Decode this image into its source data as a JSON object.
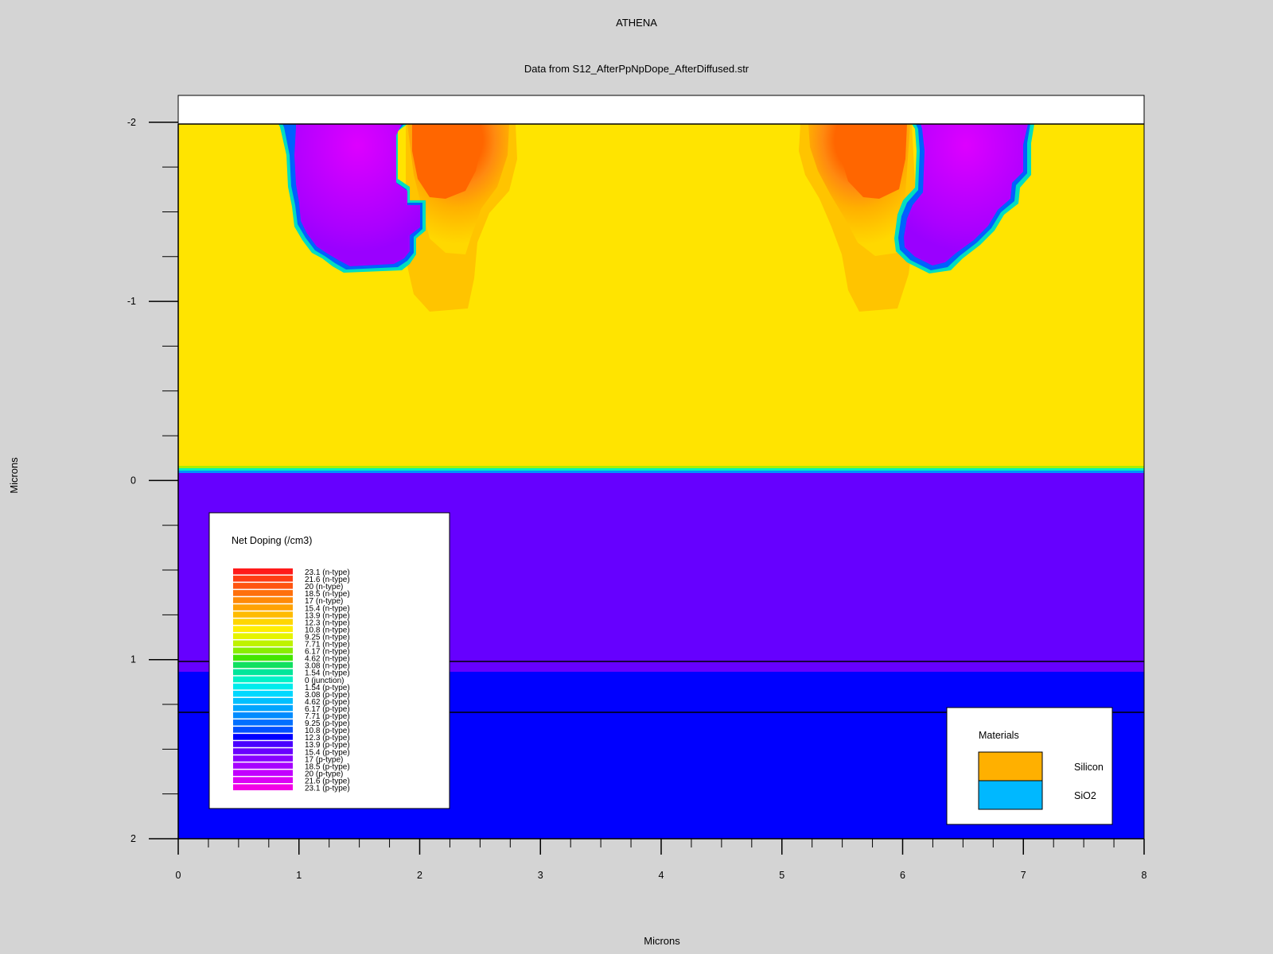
{
  "chart_data": {
    "type": "heatmap",
    "title": "ATHENA",
    "subtitle": "Data from S12_AfterPpNpDope_AfterDiffused.str",
    "xlabel": "Microns",
    "ylabel": "Microns",
    "xlim": [
      0,
      8
    ],
    "ylim": [
      -2.15,
      2
    ],
    "y_axis_inverted": true,
    "x_ticks": [
      0,
      1,
      2,
      3,
      4,
      5,
      6,
      7,
      8
    ],
    "y_ticks": [
      -2,
      -1,
      0,
      1,
      2
    ],
    "x_tick_labels": [
      "0",
      "1",
      "2",
      "3",
      "4",
      "5",
      "6",
      "7",
      "8"
    ],
    "y_tick_labels": [
      "-2",
      "-1",
      "0",
      "1",
      "2"
    ],
    "regions": {
      "top_layer": {
        "y_range": [
          -2.15,
          -2.0
        ],
        "color": "#ffffff"
      },
      "n_type_layer": {
        "y_range": [
          -2.0,
          0.06
        ],
        "color": "#ffe400",
        "doping_level": "10.8 (n-type)"
      },
      "junction_y": 0.06,
      "p_type_layer": {
        "y_range": [
          0.06,
          1.07
        ],
        "color": "#6600ff",
        "doping_level": "15.4 (p-type)"
      },
      "p_type_bottom": {
        "y_range": [
          1.07,
          2.0
        ],
        "color": "#0000ff",
        "doping_level": "12.3 (p-type)"
      },
      "material_boundaries_y": [
        1.0,
        1.29
      ]
    },
    "doped_wells": [
      {
        "side": "left",
        "type": "p",
        "x_range": [
          0.85,
          2.05
        ],
        "depth_to": -1.18,
        "color": "#aa00ff",
        "peak_color": "#dd00ff"
      },
      {
        "side": "left",
        "type": "n",
        "x_range": [
          1.85,
          2.8
        ],
        "depth_to": -0.95,
        "color": "#ffb800",
        "peak_color": "#ff6600"
      },
      {
        "side": "right",
        "type": "n",
        "x_range": [
          5.25,
          6.15
        ],
        "depth_to": -0.95,
        "color": "#ffb800",
        "peak_color": "#ff6600"
      },
      {
        "side": "right",
        "type": "p",
        "x_range": [
          5.95,
          7.1
        ],
        "depth_to": -1.18,
        "color": "#aa00ff",
        "peak_color": "#dd00ff"
      }
    ],
    "legend_doping": {
      "title": "Net Doping (/cm3)",
      "entries": [
        {
          "label": "23.1 (n-type)",
          "color": "#ff1a1a"
        },
        {
          "label": "21.6 (n-type)",
          "color": "#ff3c14"
        },
        {
          "label": "20 (n-type)",
          "color": "#ff5510"
        },
        {
          "label": "18.5 (n-type)",
          "color": "#ff700c"
        },
        {
          "label": "17 (n-type)",
          "color": "#ff8a08"
        },
        {
          "label": "15.4 (n-type)",
          "color": "#ffa204"
        },
        {
          "label": "13.9 (n-type)",
          "color": "#ffbb00"
        },
        {
          "label": "12.3 (n-type)",
          "color": "#ffd600"
        },
        {
          "label": "10.8 (n-type)",
          "color": "#ffee00"
        },
        {
          "label": "9.25 (n-type)",
          "color": "#e6f400"
        },
        {
          "label": "7.71 (n-type)",
          "color": "#bff200"
        },
        {
          "label": "6.17 (n-type)",
          "color": "#88ee00"
        },
        {
          "label": "4.62 (n-type)",
          "color": "#44e600"
        },
        {
          "label": "3.08 (n-type)",
          "color": "#10e060"
        },
        {
          "label": "1.54 (n-type)",
          "color": "#00e69a"
        },
        {
          "label": "0 (junction)",
          "color": "#00f2c8"
        },
        {
          "label": "1.54 (p-type)",
          "color": "#00ecec"
        },
        {
          "label": "3.08 (p-type)",
          "color": "#00d8ff"
        },
        {
          "label": "4.62 (p-type)",
          "color": "#00c0ff"
        },
        {
          "label": "6.17 (p-type)",
          "color": "#00a6ff"
        },
        {
          "label": "7.71 (p-type)",
          "color": "#008cff"
        },
        {
          "label": "9.25 (p-type)",
          "color": "#0070ff"
        },
        {
          "label": "10.8 (p-type)",
          "color": "#0050ff"
        },
        {
          "label": "12.3 (p-type)",
          "color": "#0000ff"
        },
        {
          "label": "13.9 (p-type)",
          "color": "#4a00ff"
        },
        {
          "label": "15.4 (p-type)",
          "color": "#6a00ff"
        },
        {
          "label": "17 (p-type)",
          "color": "#8800ff"
        },
        {
          "label": "18.5 (p-type)",
          "color": "#a600ff"
        },
        {
          "label": "20 (p-type)",
          "color": "#c200ff"
        },
        {
          "label": "21.6 (p-type)",
          "color": "#dc00f5"
        },
        {
          "label": "23.1 (p-type)",
          "color": "#f200e6"
        }
      ]
    },
    "legend_materials": {
      "title": "Materials",
      "entries": [
        {
          "label": "Silicon",
          "color": "#ffb000"
        },
        {
          "label": "SiO2",
          "color": "#00b8ff"
        }
      ]
    },
    "legend_placement": {
      "doping": "bottom-left",
      "materials": "bottom-right"
    }
  }
}
